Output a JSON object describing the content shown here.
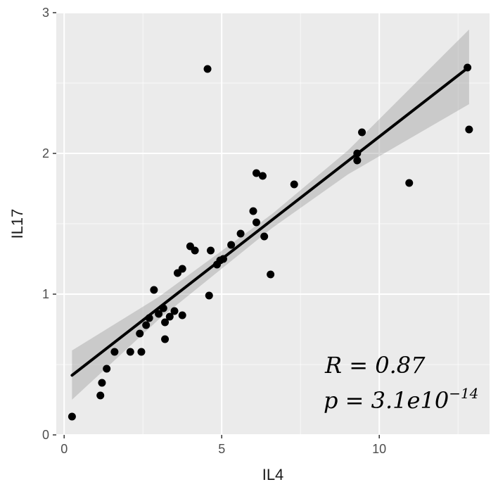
{
  "chart_data": {
    "type": "scatter",
    "title": "",
    "xlabel": "IL4",
    "ylabel": "IL17",
    "xlim": [
      -0.25,
      13.5
    ],
    "ylim": [
      0,
      3
    ],
    "x_ticks": [
      0,
      5,
      10
    ],
    "y_ticks": [
      0,
      1,
      2,
      3
    ],
    "grid": true,
    "legend": "none",
    "series": [
      {
        "points": [
          [
            0.25,
            0.13
          ],
          [
            1.15,
            0.28
          ],
          [
            1.2,
            0.37
          ],
          [
            1.35,
            0.47
          ],
          [
            1.6,
            0.59
          ],
          [
            2.1,
            0.59
          ],
          [
            2.45,
            0.59
          ],
          [
            2.4,
            0.72
          ],
          [
            2.6,
            0.78
          ],
          [
            2.7,
            0.83
          ],
          [
            2.85,
            1.03
          ],
          [
            3.0,
            0.86
          ],
          [
            3.15,
            0.9
          ],
          [
            3.2,
            0.8
          ],
          [
            3.2,
            0.68
          ],
          [
            3.35,
            0.84
          ],
          [
            3.5,
            0.88
          ],
          [
            3.6,
            1.15
          ],
          [
            3.75,
            1.18
          ],
          [
            3.75,
            0.85
          ],
          [
            4.0,
            1.34
          ],
          [
            4.15,
            1.31
          ],
          [
            4.55,
            2.6
          ],
          [
            4.6,
            0.99
          ],
          [
            4.65,
            1.31
          ],
          [
            4.85,
            1.21
          ],
          [
            4.95,
            1.24
          ],
          [
            5.05,
            1.25
          ],
          [
            5.3,
            1.35
          ],
          [
            5.6,
            1.43
          ],
          [
            6.0,
            1.59
          ],
          [
            6.1,
            1.51
          ],
          [
            6.1,
            1.86
          ],
          [
            6.3,
            1.84
          ],
          [
            6.35,
            1.41
          ],
          [
            6.55,
            1.14
          ],
          [
            7.3,
            1.78
          ],
          [
            9.3,
            1.95
          ],
          [
            9.3,
            2.0
          ],
          [
            9.45,
            2.15
          ],
          [
            10.95,
            1.79
          ],
          [
            12.8,
            2.61
          ],
          [
            12.85,
            2.17
          ]
        ]
      }
    ],
    "regression": {
      "x_range": [
        0.25,
        12.85
      ],
      "slope": 0.1739,
      "intercept": 0.38,
      "ci_band": [
        [
          0.25,
          0.25,
          0.6
        ],
        [
          3.0,
          0.82,
          0.98
        ],
        [
          6.6,
          1.47,
          1.57
        ],
        [
          9.0,
          1.85,
          2.02
        ],
        [
          12.85,
          2.35,
          2.88
        ]
      ]
    },
    "annotations": [
      {
        "id": "r",
        "text": "R = 0.87"
      },
      {
        "id": "p",
        "base": "p = 3.1e10",
        "sup": "−14"
      }
    ],
    "colors": {
      "panel": "#ebebeb",
      "grid_major": "#ffffff",
      "point": "#000000",
      "line": "#000000",
      "band": "#999999"
    }
  }
}
